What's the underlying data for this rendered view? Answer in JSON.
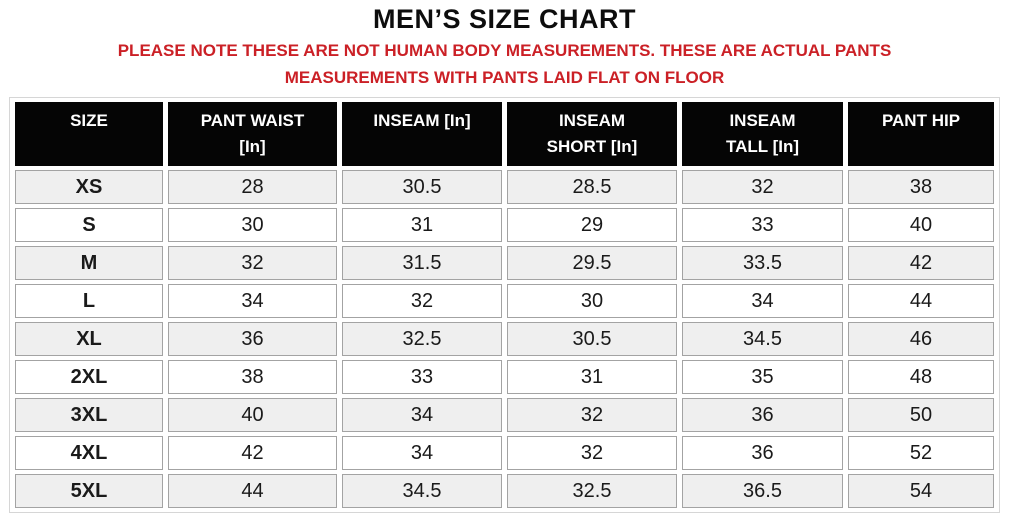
{
  "title": "MEN’S SIZE CHART",
  "note": {
    "color": "#cb2026",
    "lines": [
      "PLEASE NOTE THESE ARE NOT HUMAN BODY MEASUREMENTS. THESE ARE ACTUAL PANTS",
      "MEASUREMENTS WITH PANTS LAID FLAT ON FLOOR"
    ]
  },
  "colors": {
    "header_bg": "#050505",
    "header_text": "#ffffff",
    "row_alt_bg": "#efefef",
    "cell_border": "#a3a3a3",
    "title_text": "#0d0d0d"
  },
  "chart_data": {
    "type": "table",
    "title": "MEN’S SIZE CHART",
    "columns": [
      {
        "lines": [
          "SIZE"
        ]
      },
      {
        "lines": [
          "PANT WAIST",
          "[In]"
        ]
      },
      {
        "lines": [
          "INSEAM [In]"
        ]
      },
      {
        "lines": [
          "INSEAM",
          "SHORT [In]"
        ]
      },
      {
        "lines": [
          "INSEAM",
          "TALL [In]"
        ]
      },
      {
        "lines": [
          "PANT HIP"
        ]
      }
    ],
    "rows": [
      [
        "XS",
        "28",
        "30.5",
        "28.5",
        "32",
        "38"
      ],
      [
        "S",
        "30",
        "31",
        "29",
        "33",
        "40"
      ],
      [
        "M",
        "32",
        "31.5",
        "29.5",
        "33.5",
        "42"
      ],
      [
        "L",
        "34",
        "32",
        "30",
        "34",
        "44"
      ],
      [
        "XL",
        "36",
        "32.5",
        "30.5",
        "34.5",
        "46"
      ],
      [
        "2XL",
        "38",
        "33",
        "31",
        "35",
        "48"
      ],
      [
        "3XL",
        "40",
        "34",
        "32",
        "36",
        "50"
      ],
      [
        "4XL",
        "42",
        "34",
        "32",
        "36",
        "52"
      ],
      [
        "5XL",
        "44",
        "34.5",
        "32.5",
        "36.5",
        "54"
      ]
    ]
  }
}
